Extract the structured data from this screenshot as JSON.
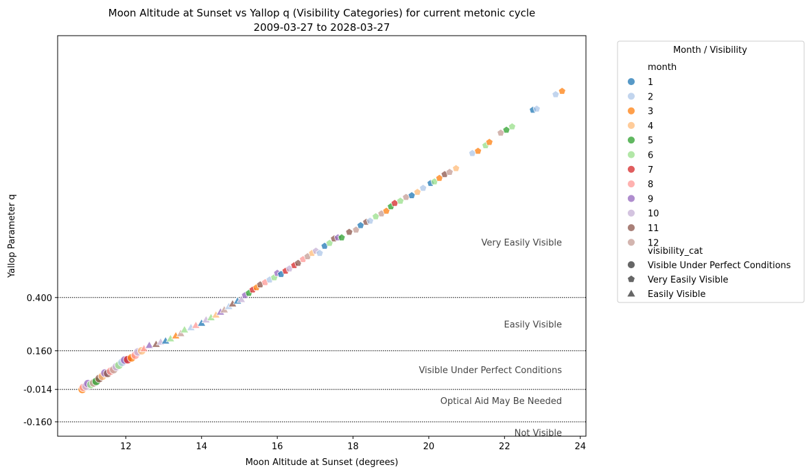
{
  "chart_data": {
    "type": "scatter",
    "title_line1": "Moon Altitude at Sunset vs Yallop q (Visibility Categories) for current metonic cycle",
    "title_line2": "2009-03-27 to 2028-03-27",
    "xlabel": "Moon Altitude at Sunset (degrees)",
    "ylabel": "Yallop Parameter q",
    "xlim": [
      10.2,
      24.15
    ],
    "ylim": [
      -0.225,
      1.58
    ],
    "x_ticks": [
      12,
      14,
      16,
      18,
      20,
      22,
      24
    ],
    "x_tick_labels": [
      "12",
      "14",
      "16",
      "18",
      "20",
      "22",
      "24"
    ],
    "y_ticks": [
      0.4,
      0.16,
      -0.014,
      -0.16
    ],
    "y_tick_labels": [
      "0.400",
      "0.160",
      "-0.014",
      "-0.160"
    ],
    "threshold_lines": [
      0.4,
      0.16,
      -0.014,
      -0.16
    ],
    "grid": false,
    "legend_placement": "outside right",
    "region_labels": [
      {
        "text": "Very Easily Visible",
        "q": 0.65
      },
      {
        "text": "Easily Visible",
        "q": 0.28
      },
      {
        "text": "Visible Under Perfect Conditions",
        "q": 0.075
      },
      {
        "text": "Optical Aid May Be Needed",
        "q": -0.065
      },
      {
        "text": "Not Visible",
        "q": -0.208
      }
    ],
    "month_colors": {
      "1": "#1f77b4",
      "2": "#aec7e8",
      "3": "#ff7f0e",
      "4": "#ffbb78",
      "5": "#2ca02c",
      "6": "#98df8a",
      "7": "#d62728",
      "8": "#ff9896",
      "9": "#9467bd",
      "10": "#c5b0d5",
      "11": "#8c564b",
      "12": "#c49c94"
    },
    "category_markers": {
      "Visible Under Perfect Conditions": "circle",
      "Very Easily Visible": "pentagon",
      "Easily Visible": "triangle"
    },
    "legend": {
      "title": "Month / Visibility",
      "month_header": "month",
      "months": [
        "1",
        "2",
        "3",
        "4",
        "5",
        "6",
        "7",
        "8",
        "9",
        "10",
        "11",
        "12"
      ],
      "category_header": "visibility_cat",
      "categories": [
        "Visible Under Perfect Conditions",
        "Very Easily Visible",
        "Easily Visible"
      ],
      "marker_color": "#666666"
    },
    "points": [
      {
        "x": 10.85,
        "q": -0.014,
        "month": 3,
        "cat": "Visible Under Perfect Conditions"
      },
      {
        "x": 10.88,
        "q": -0.005,
        "month": 8,
        "cat": "Visible Under Perfect Conditions"
      },
      {
        "x": 10.95,
        "q": 0.0,
        "month": 10,
        "cat": "Visible Under Perfect Conditions"
      },
      {
        "x": 11.0,
        "q": 0.012,
        "month": 9,
        "cat": "Visible Under Perfect Conditions"
      },
      {
        "x": 11.08,
        "q": 0.008,
        "month": 6,
        "cat": "Visible Under Perfect Conditions"
      },
      {
        "x": 11.15,
        "q": 0.015,
        "month": 12,
        "cat": "Visible Under Perfect Conditions"
      },
      {
        "x": 11.22,
        "q": 0.022,
        "month": 5,
        "cat": "Visible Under Perfect Conditions"
      },
      {
        "x": 11.3,
        "q": 0.035,
        "month": 11,
        "cat": "Visible Under Perfect Conditions"
      },
      {
        "x": 11.38,
        "q": 0.045,
        "month": 4,
        "cat": "Visible Under Perfect Conditions"
      },
      {
        "x": 11.45,
        "q": 0.06,
        "month": 9,
        "cat": "Visible Under Perfect Conditions"
      },
      {
        "x": 11.52,
        "q": 0.058,
        "month": 11,
        "cat": "Visible Under Perfect Conditions"
      },
      {
        "x": 11.6,
        "q": 0.068,
        "month": 8,
        "cat": "Visible Under Perfect Conditions"
      },
      {
        "x": 11.68,
        "q": 0.075,
        "month": 12,
        "cat": "Visible Under Perfect Conditions"
      },
      {
        "x": 11.75,
        "q": 0.088,
        "month": 10,
        "cat": "Visible Under Perfect Conditions"
      },
      {
        "x": 11.82,
        "q": 0.095,
        "month": 6,
        "cat": "Visible Under Perfect Conditions"
      },
      {
        "x": 11.9,
        "q": 0.108,
        "month": 2,
        "cat": "Visible Under Perfect Conditions"
      },
      {
        "x": 11.97,
        "q": 0.118,
        "month": 9,
        "cat": "Visible Under Perfect Conditions"
      },
      {
        "x": 12.05,
        "q": 0.12,
        "month": 7,
        "cat": "Visible Under Perfect Conditions"
      },
      {
        "x": 12.15,
        "q": 0.128,
        "month": 3,
        "cat": "Visible Under Perfect Conditions"
      },
      {
        "x": 12.25,
        "q": 0.14,
        "month": 8,
        "cat": "Visible Under Perfect Conditions"
      },
      {
        "x": 12.32,
        "q": 0.155,
        "month": 10,
        "cat": "Visible Under Perfect Conditions"
      },
      {
        "x": 12.42,
        "q": 0.16,
        "month": 4,
        "cat": "Visible Under Perfect Conditions"
      },
      {
        "x": 12.48,
        "q": 0.17,
        "month": 8,
        "cat": "Easily Visible"
      },
      {
        "x": 12.62,
        "q": 0.185,
        "month": 9,
        "cat": "Easily Visible"
      },
      {
        "x": 12.8,
        "q": 0.19,
        "month": 11,
        "cat": "Easily Visible"
      },
      {
        "x": 12.92,
        "q": 0.2,
        "month": 10,
        "cat": "Easily Visible"
      },
      {
        "x": 13.05,
        "q": 0.205,
        "month": 1,
        "cat": "Easily Visible"
      },
      {
        "x": 13.18,
        "q": 0.215,
        "month": 6,
        "cat": "Easily Visible"
      },
      {
        "x": 13.32,
        "q": 0.228,
        "month": 3,
        "cat": "Easily Visible"
      },
      {
        "x": 13.45,
        "q": 0.238,
        "month": 12,
        "cat": "Easily Visible"
      },
      {
        "x": 13.55,
        "q": 0.255,
        "month": 6,
        "cat": "Easily Visible"
      },
      {
        "x": 13.72,
        "q": 0.265,
        "month": 2,
        "cat": "Easily Visible"
      },
      {
        "x": 13.85,
        "q": 0.275,
        "month": 8,
        "cat": "Easily Visible"
      },
      {
        "x": 14.0,
        "q": 0.285,
        "month": 1,
        "cat": "Easily Visible"
      },
      {
        "x": 14.12,
        "q": 0.3,
        "month": 10,
        "cat": "Easily Visible"
      },
      {
        "x": 14.25,
        "q": 0.31,
        "month": 6,
        "cat": "Easily Visible"
      },
      {
        "x": 14.38,
        "q": 0.322,
        "month": 4,
        "cat": "Easily Visible"
      },
      {
        "x": 14.5,
        "q": 0.335,
        "month": 9,
        "cat": "Easily Visible"
      },
      {
        "x": 14.6,
        "q": 0.345,
        "month": 12,
        "cat": "Easily Visible"
      },
      {
        "x": 14.72,
        "q": 0.36,
        "month": 2,
        "cat": "Easily Visible"
      },
      {
        "x": 14.82,
        "q": 0.372,
        "month": 11,
        "cat": "Easily Visible"
      },
      {
        "x": 14.95,
        "q": 0.385,
        "month": 1,
        "cat": "Easily Visible"
      },
      {
        "x": 15.05,
        "q": 0.392,
        "month": 10,
        "cat": "Easily Visible"
      },
      {
        "x": 15.15,
        "q": 0.41,
        "month": 9,
        "cat": "Very Easily Visible"
      },
      {
        "x": 15.25,
        "q": 0.42,
        "month": 5,
        "cat": "Very Easily Visible"
      },
      {
        "x": 15.35,
        "q": 0.435,
        "month": 7,
        "cat": "Very Easily Visible"
      },
      {
        "x": 15.45,
        "q": 0.445,
        "month": 3,
        "cat": "Very Easily Visible"
      },
      {
        "x": 15.55,
        "q": 0.458,
        "month": 11,
        "cat": "Very Easily Visible"
      },
      {
        "x": 15.68,
        "q": 0.468,
        "month": 8,
        "cat": "Very Easily Visible"
      },
      {
        "x": 15.8,
        "q": 0.48,
        "month": 2,
        "cat": "Very Easily Visible"
      },
      {
        "x": 15.92,
        "q": 0.49,
        "month": 6,
        "cat": "Very Easily Visible"
      },
      {
        "x": 16.0,
        "q": 0.51,
        "month": 9,
        "cat": "Very Easily Visible"
      },
      {
        "x": 16.1,
        "q": 0.505,
        "month": 1,
        "cat": "Very Easily Visible"
      },
      {
        "x": 16.22,
        "q": 0.52,
        "month": 7,
        "cat": "Very Easily Visible"
      },
      {
        "x": 16.32,
        "q": 0.53,
        "month": 10,
        "cat": "Very Easily Visible"
      },
      {
        "x": 16.45,
        "q": 0.545,
        "month": 7,
        "cat": "Very Easily Visible"
      },
      {
        "x": 16.55,
        "q": 0.555,
        "month": 11,
        "cat": "Very Easily Visible"
      },
      {
        "x": 16.68,
        "q": 0.572,
        "month": 8,
        "cat": "Very Easily Visible"
      },
      {
        "x": 16.8,
        "q": 0.585,
        "month": 12,
        "cat": "Very Easily Visible"
      },
      {
        "x": 16.92,
        "q": 0.6,
        "month": 4,
        "cat": "Very Easily Visible"
      },
      {
        "x": 17.02,
        "q": 0.61,
        "month": 10,
        "cat": "Very Easily Visible"
      },
      {
        "x": 17.12,
        "q": 0.6,
        "month": 2,
        "cat": "Very Easily Visible"
      },
      {
        "x": 17.25,
        "q": 0.632,
        "month": 1,
        "cat": "Very Easily Visible"
      },
      {
        "x": 17.38,
        "q": 0.645,
        "month": 6,
        "cat": "Very Easily Visible"
      },
      {
        "x": 17.5,
        "q": 0.665,
        "month": 11,
        "cat": "Very Easily Visible"
      },
      {
        "x": 17.6,
        "q": 0.67,
        "month": 9,
        "cat": "Very Easily Visible"
      },
      {
        "x": 17.7,
        "q": 0.67,
        "month": 5,
        "cat": "Very Easily Visible"
      },
      {
        "x": 17.9,
        "q": 0.695,
        "month": 11,
        "cat": "Very Easily Visible"
      },
      {
        "x": 18.08,
        "q": 0.705,
        "month": 12,
        "cat": "Very Easily Visible"
      },
      {
        "x": 18.2,
        "q": 0.725,
        "month": 1,
        "cat": "Very Easily Visible"
      },
      {
        "x": 18.35,
        "q": 0.74,
        "month": 11,
        "cat": "Very Easily Visible"
      },
      {
        "x": 18.45,
        "q": 0.745,
        "month": 2,
        "cat": "Very Easily Visible"
      },
      {
        "x": 18.6,
        "q": 0.765,
        "month": 6,
        "cat": "Very Easily Visible"
      },
      {
        "x": 18.75,
        "q": 0.778,
        "month": 12,
        "cat": "Very Easily Visible"
      },
      {
        "x": 18.88,
        "q": 0.79,
        "month": 3,
        "cat": "Very Easily Visible"
      },
      {
        "x": 19.0,
        "q": 0.81,
        "month": 5,
        "cat": "Very Easily Visible"
      },
      {
        "x": 19.1,
        "q": 0.825,
        "month": 7,
        "cat": "Very Easily Visible"
      },
      {
        "x": 19.25,
        "q": 0.835,
        "month": 6,
        "cat": "Very Easily Visible"
      },
      {
        "x": 19.4,
        "q": 0.852,
        "month": 12,
        "cat": "Very Easily Visible"
      },
      {
        "x": 19.55,
        "q": 0.86,
        "month": 1,
        "cat": "Very Easily Visible"
      },
      {
        "x": 19.7,
        "q": 0.875,
        "month": 4,
        "cat": "Very Easily Visible"
      },
      {
        "x": 19.85,
        "q": 0.893,
        "month": 2,
        "cat": "Very Easily Visible"
      },
      {
        "x": 20.05,
        "q": 0.915,
        "month": 1,
        "cat": "Very Easily Visible"
      },
      {
        "x": 20.15,
        "q": 0.922,
        "month": 6,
        "cat": "Very Easily Visible"
      },
      {
        "x": 20.28,
        "q": 0.938,
        "month": 3,
        "cat": "Very Easily Visible"
      },
      {
        "x": 20.42,
        "q": 0.955,
        "month": 11,
        "cat": "Very Easily Visible"
      },
      {
        "x": 20.55,
        "q": 0.965,
        "month": 12,
        "cat": "Very Easily Visible"
      },
      {
        "x": 20.72,
        "q": 0.982,
        "month": 4,
        "cat": "Very Easily Visible"
      },
      {
        "x": 21.15,
        "q": 1.05,
        "month": 2,
        "cat": "Very Easily Visible"
      },
      {
        "x": 21.3,
        "q": 1.06,
        "month": 3,
        "cat": "Very Easily Visible"
      },
      {
        "x": 21.5,
        "q": 1.085,
        "month": 6,
        "cat": "Very Easily Visible"
      },
      {
        "x": 21.6,
        "q": 1.1,
        "month": 3,
        "cat": "Very Easily Visible"
      },
      {
        "x": 21.9,
        "q": 1.142,
        "month": 12,
        "cat": "Very Easily Visible"
      },
      {
        "x": 22.05,
        "q": 1.155,
        "month": 5,
        "cat": "Very Easily Visible"
      },
      {
        "x": 22.2,
        "q": 1.17,
        "month": 6,
        "cat": "Very Easily Visible"
      },
      {
        "x": 22.75,
        "q": 1.245,
        "month": 1,
        "cat": "Very Easily Visible"
      },
      {
        "x": 22.85,
        "q": 1.25,
        "month": 2,
        "cat": "Very Easily Visible"
      },
      {
        "x": 23.35,
        "q": 1.315,
        "month": 2,
        "cat": "Very Easily Visible"
      },
      {
        "x": 23.52,
        "q": 1.33,
        "month": 3,
        "cat": "Very Easily Visible"
      }
    ]
  }
}
